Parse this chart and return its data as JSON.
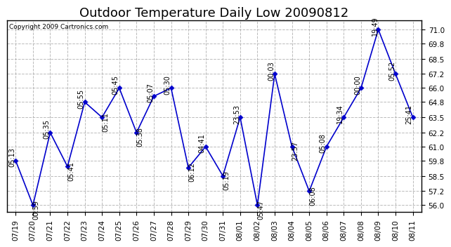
{
  "title": "Outdoor Temperature Daily Low 20090812",
  "copyright": "Copyright 2009 Cartronics.com",
  "dates": [
    "07/19",
    "07/20",
    "07/21",
    "07/22",
    "07/23",
    "07/24",
    "07/25",
    "07/26",
    "07/27",
    "07/28",
    "07/29",
    "07/30",
    "07/31",
    "08/01",
    "08/02",
    "08/03",
    "08/04",
    "08/05",
    "08/06",
    "08/07",
    "08/08",
    "08/09",
    "08/10",
    "08/11"
  ],
  "values": [
    59.8,
    56.0,
    62.2,
    59.3,
    64.8,
    63.5,
    66.0,
    62.2,
    65.3,
    66.0,
    59.2,
    61.0,
    58.5,
    63.5,
    56.0,
    67.2,
    61.0,
    57.2,
    61.0,
    63.5,
    66.0,
    71.0,
    67.2,
    63.5
  ],
  "labels": [
    "05:13",
    "00:59",
    "05:35",
    "05:41",
    "05:55",
    "05:11",
    "05:45",
    "05:38",
    "05:07",
    "05:30",
    "06:12",
    "04:41",
    "05:19",
    "23:53",
    "05:47",
    "00:03",
    "23:57",
    "06:08",
    "05:08",
    "19:34",
    "00:00",
    "19:49",
    "05:52",
    "25:41"
  ],
  "label_directions": [
    1,
    -1,
    1,
    -1,
    1,
    -1,
    1,
    -1,
    1,
    1,
    -1,
    1,
    -1,
    1,
    -1,
    1,
    -1,
    -1,
    1,
    1,
    1,
    1,
    1,
    1
  ],
  "line_color": "#0000cc",
  "marker_color": "#0000cc",
  "background_color": "#ffffff",
  "grid_color": "#aaaaaa",
  "title_fontsize": 13,
  "label_fontsize": 7,
  "tick_fontsize": 7.5,
  "copyright_fontsize": 6.5,
  "ylim": [
    55.4,
    71.8
  ],
  "yticks": [
    56.0,
    57.2,
    58.5,
    59.8,
    61.0,
    62.2,
    63.5,
    64.8,
    66.0,
    67.2,
    68.5,
    69.8,
    71.0
  ]
}
